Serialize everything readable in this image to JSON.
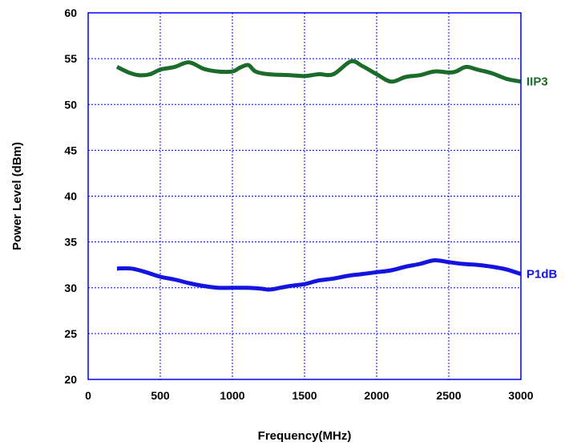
{
  "chart_data": {
    "type": "line",
    "title": "",
    "xlabel": "Frequency(MHz)",
    "ylabel": "Power Level (dBm)",
    "xlim": [
      0,
      3000
    ],
    "ylim": [
      20,
      60
    ],
    "x_ticks": [
      "0",
      "500",
      "1000",
      "1500",
      "2000",
      "2500",
      "3000"
    ],
    "y_ticks": [
      "20",
      "25",
      "30",
      "35",
      "40",
      "45",
      "50",
      "55",
      "60"
    ],
    "grid": true,
    "grid_style": "dotted",
    "plot_border_color": "#0000ff",
    "series": [
      {
        "name": "IIP3",
        "color": "#1b6b2a",
        "x": [
          200,
          280,
          350,
          430,
          500,
          600,
          700,
          800,
          900,
          1000,
          1050,
          1110,
          1160,
          1250,
          1400,
          1500,
          1600,
          1700,
          1820,
          1900,
          2000,
          2100,
          2200,
          2300,
          2400,
          2500,
          2550,
          2620,
          2700,
          2800,
          2900,
          3000
        ],
        "y": [
          54.1,
          53.5,
          53.2,
          53.3,
          53.8,
          54.1,
          54.6,
          53.9,
          53.6,
          53.6,
          54.0,
          54.3,
          53.6,
          53.3,
          53.2,
          53.1,
          53.3,
          53.3,
          54.7,
          54.2,
          53.3,
          52.5,
          53.0,
          53.2,
          53.6,
          53.5,
          53.6,
          54.1,
          53.8,
          53.4,
          52.8,
          52.5
        ]
      },
      {
        "name": "P1dB",
        "color": "#1414e0",
        "x": [
          200,
          300,
          400,
          500,
          600,
          700,
          800,
          900,
          1000,
          1100,
          1200,
          1250,
          1300,
          1400,
          1500,
          1600,
          1700,
          1800,
          1900,
          2000,
          2100,
          2200,
          2300,
          2400,
          2500,
          2600,
          2700,
          2800,
          2900,
          3000
        ],
        "y": [
          32.1,
          32.1,
          31.7,
          31.2,
          30.9,
          30.5,
          30.2,
          30.0,
          30.0,
          30.0,
          29.9,
          29.8,
          29.9,
          30.2,
          30.4,
          30.8,
          31.0,
          31.3,
          31.5,
          31.7,
          31.9,
          32.3,
          32.6,
          33.0,
          32.8,
          32.6,
          32.5,
          32.3,
          32.0,
          31.5
        ]
      }
    ]
  }
}
